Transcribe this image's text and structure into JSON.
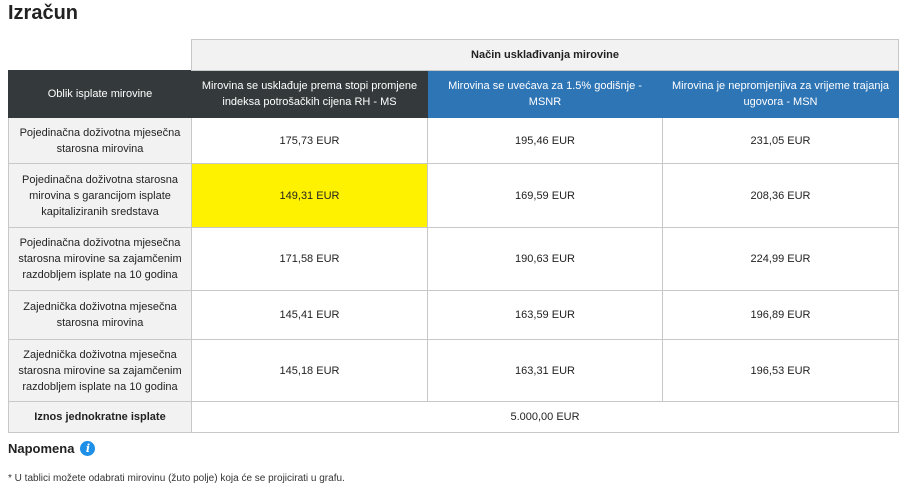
{
  "title": "Izračun",
  "table": {
    "group_header": "Način usklađivanja mirovine",
    "row_header_label": "Oblik isplate mirovine",
    "columns": [
      "Mirovina se usklađuje prema stopi promjene indeksa potrošačkih cijena RH - MS",
      "Mirovina se uvećava za 1.5% godišnje - MSNR",
      "Mirovina je nepromjenjiva za vrijeme trajanja ugovora - MSN"
    ],
    "rows": [
      {
        "label": "Pojedinačna doživotna mjesečna starosna mirovina",
        "values": [
          "175,73 EUR",
          "195,46 EUR",
          "231,05 EUR"
        ]
      },
      {
        "label": "Pojedinačna doživotna starosna mirovina s garancijom isplate kapitaliziranih sredstava",
        "values": [
          "149,31 EUR",
          "169,59 EUR",
          "208,36 EUR"
        ]
      },
      {
        "label": "Pojedinačna doživotna mjesečna starosna mirovine sa zajamčenim razdobljem isplate na 10 godina",
        "values": [
          "171,58 EUR",
          "190,63 EUR",
          "224,99 EUR"
        ]
      },
      {
        "label": "Zajednička doživotna mjesečna starosna mirovina",
        "values": [
          "145,41 EUR",
          "163,59 EUR",
          "196,89 EUR"
        ]
      },
      {
        "label": "Zajednička doživotna mjesečna starosna mirovine sa zajamčenim razdobljem isplate na 10 godina",
        "values": [
          "145,18 EUR",
          "163,31 EUR",
          "196,53 EUR"
        ]
      }
    ],
    "selected_cell": {
      "row": 1,
      "column": 0,
      "color": "#fff200"
    },
    "footer_label": "Iznos jednokratne isplate",
    "footer_value": "5.000,00 EUR"
  },
  "colors": {
    "dark_header": "#343a3c",
    "blue_header": "#2e75b6",
    "info_icon": "#1e90e8"
  },
  "napomena": {
    "label": "Napomena",
    "icon": "info-icon"
  },
  "note": "* U tablici možete odabrati mirovinu (žuto polje) koja će se projicirati u grafu."
}
